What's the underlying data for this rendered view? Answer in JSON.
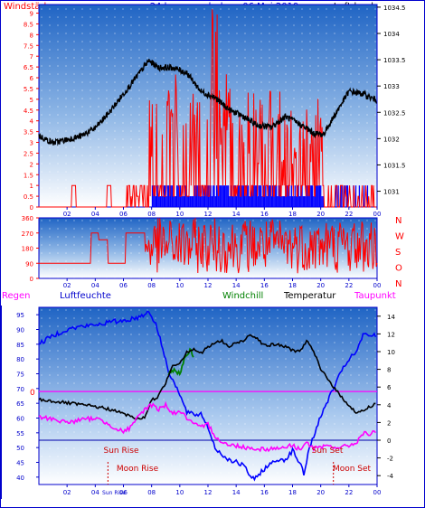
{
  "header": {
    "left_label": "Windstärke",
    "title": "24 hour graph day : 06 Mai 2019",
    "right_label": "Luftdruck"
  },
  "colors": {
    "wind": "#ff0000",
    "pressure": "#000000",
    "gust_bars": "#0000ff",
    "humidity": "#0000ff",
    "windchill": "#008000",
    "temperature": "#000000",
    "dewpoint": "#ff00ff",
    "zero_line": "#ff00ff",
    "sun_moon": "#cc0000",
    "bg_top": "#1a5cb8",
    "bg_bottom": "#ffffff"
  },
  "chart_data": [
    {
      "type": "line",
      "name": "wind-pressure",
      "x_ticks": [
        "02",
        "04",
        "06",
        "08",
        "10",
        "12",
        "14",
        "16",
        "18",
        "20",
        "22",
        "00"
      ],
      "left_axis": {
        "label": "Windstärke",
        "ticks": [
          0,
          0.5,
          1,
          1.5,
          2,
          2.5,
          3,
          3.5,
          4,
          4.5,
          5,
          5.5,
          6,
          6.5,
          7,
          7.5,
          8,
          8.5,
          9
        ],
        "ylim": [
          0,
          9.4
        ]
      },
      "right_axis": {
        "label": "Luftdruck",
        "ticks": [
          1031,
          1031.5,
          1032,
          1032.5,
          1033,
          1033.5,
          1034,
          1034.5
        ],
        "ylim": [
          1030.7,
          1034.55
        ]
      },
      "pressure_curve": [
        [
          0,
          1032.05
        ],
        [
          1,
          1031.92
        ],
        [
          2,
          1031.98
        ],
        [
          3,
          1032.05
        ],
        [
          4,
          1032.2
        ],
        [
          5,
          1032.5
        ],
        [
          6,
          1032.85
        ],
        [
          7,
          1033.2
        ],
        [
          7.8,
          1033.48
        ],
        [
          8.5,
          1033.35
        ],
        [
          9.5,
          1033.35
        ],
        [
          10.5,
          1033.25
        ],
        [
          11.5,
          1032.9
        ],
        [
          12.5,
          1032.78
        ],
        [
          13.5,
          1032.55
        ],
        [
          14.5,
          1032.42
        ],
        [
          15.5,
          1032.25
        ],
        [
          16.5,
          1032.22
        ],
        [
          17.5,
          1032.42
        ],
        [
          18.5,
          1032.28
        ],
        [
          19.5,
          1032.1
        ],
        [
          20.2,
          1032.08
        ],
        [
          21,
          1032.45
        ],
        [
          22,
          1032.9
        ],
        [
          23,
          1032.85
        ],
        [
          24,
          1032.72
        ]
      ]
    },
    {
      "type": "scatter",
      "name": "wind-direction",
      "x_ticks": [
        "02",
        "04",
        "06",
        "08",
        "10",
        "12",
        "14",
        "16",
        "18",
        "20",
        "22",
        "00"
      ],
      "y_ticks": [
        0,
        90,
        180,
        270,
        360
      ],
      "right_labels": [
        "N",
        "W",
        "S",
        "O",
        "N"
      ],
      "ylim": [
        0,
        360
      ]
    },
    {
      "type": "line",
      "name": "temperature-humidity",
      "x_ticks": [
        "02",
        "04",
        "06",
        "08",
        "10",
        "12",
        "14",
        "16",
        "18",
        "20",
        "22",
        "00"
      ],
      "legend": [
        "Regen",
        "Luftfeuchte",
        "Windchill",
        "Temperatur",
        "Taupunkt"
      ],
      "left_axis": {
        "ticks": [
          40,
          45,
          50,
          55,
          60,
          65,
          70,
          75,
          80,
          85,
          90,
          95
        ],
        "ylim": [
          37.5,
          97.5
        ]
      },
      "right_axis": {
        "ticks": [
          -4,
          -2,
          0,
          2,
          4,
          6,
          8,
          10,
          12,
          14
        ],
        "ylim": [
          -5,
          15
        ]
      },
      "zero_line_label": "0",
      "humidity": [
        [
          0,
          85
        ],
        [
          1,
          88
        ],
        [
          2,
          90
        ],
        [
          3,
          91
        ],
        [
          4,
          91.5
        ],
        [
          5,
          92.5
        ],
        [
          6,
          93
        ],
        [
          7,
          94
        ],
        [
          7.8,
          96
        ],
        [
          8.3,
          92
        ],
        [
          8.7,
          85
        ],
        [
          9.2,
          76
        ],
        [
          9.8,
          70
        ],
        [
          10.5,
          62
        ],
        [
          11,
          61
        ],
        [
          11.5,
          61.5
        ],
        [
          12,
          57
        ],
        [
          12.5,
          50
        ],
        [
          13,
          47.5
        ],
        [
          13.5,
          46
        ],
        [
          14,
          45
        ],
        [
          14.5,
          44
        ],
        [
          15,
          40.5
        ],
        [
          15.3,
          39
        ],
        [
          15.8,
          42
        ],
        [
          16.3,
          44
        ],
        [
          17,
          46
        ],
        [
          17.5,
          46
        ],
        [
          18,
          49
        ],
        [
          18.5,
          45
        ],
        [
          18.8,
          41
        ],
        [
          19.2,
          50
        ],
        [
          19.8,
          58
        ],
        [
          20.5,
          66
        ],
        [
          21,
          71
        ],
        [
          21.5,
          76
        ],
        [
          22,
          80
        ],
        [
          22.5,
          82
        ],
        [
          23,
          88
        ],
        [
          24,
          88
        ]
      ],
      "temperature": [
        [
          0,
          4.6
        ],
        [
          1,
          4.4
        ],
        [
          2,
          4.2
        ],
        [
          3,
          4.0
        ],
        [
          4,
          3.8
        ],
        [
          5,
          3.5
        ],
        [
          6,
          3.0
        ],
        [
          7,
          2.4
        ],
        [
          7.5,
          2.6
        ],
        [
          8,
          4.5
        ],
        [
          8.5,
          5.0
        ],
        [
          9,
          6.5
        ],
        [
          9.5,
          8.5
        ],
        [
          10,
          8.7
        ],
        [
          10.5,
          10.0
        ],
        [
          11,
          10.3
        ],
        [
          11.5,
          9.8
        ],
        [
          12,
          10.5
        ],
        [
          12.5,
          11.0
        ],
        [
          13,
          11.2
        ],
        [
          13.5,
          10.5
        ],
        [
          14,
          11.0
        ],
        [
          14.5,
          11.2
        ],
        [
          15,
          12.0
        ],
        [
          15.5,
          11.5
        ],
        [
          16,
          10.7
        ],
        [
          17,
          10.8
        ],
        [
          18,
          10.2
        ],
        [
          18.5,
          10.0
        ],
        [
          19,
          11.2
        ],
        [
          19.5,
          10.0
        ],
        [
          20,
          8.0
        ],
        [
          20.5,
          7.0
        ],
        [
          21,
          5.8
        ],
        [
          21.5,
          4.8
        ],
        [
          22,
          4.0
        ],
        [
          22.5,
          3.1
        ],
        [
          23,
          3.3
        ],
        [
          23.5,
          3.8
        ],
        [
          24,
          4.2
        ]
      ],
      "windchill": [
        [
          9.2,
          7.5
        ],
        [
          9.6,
          8.0
        ],
        [
          10,
          7.4
        ],
        [
          10.4,
          9.5
        ],
        [
          10.8,
          10.2
        ],
        [
          11,
          9.0
        ]
      ],
      "dewpoint": [
        [
          0,
          2.6
        ],
        [
          1,
          2.4
        ],
        [
          2,
          2.0
        ],
        [
          3,
          2.3
        ],
        [
          4,
          2.5
        ],
        [
          5,
          1.8
        ],
        [
          5.6,
          1.2
        ],
        [
          6,
          1.0
        ],
        [
          6.5,
          1.4
        ],
        [
          7,
          2.5
        ],
        [
          7.5,
          3.5
        ],
        [
          8,
          4.0
        ],
        [
          8.5,
          3.5
        ],
        [
          9,
          4.0
        ],
        [
          9.5,
          3.0
        ],
        [
          10,
          3.3
        ],
        [
          10.5,
          2.5
        ],
        [
          11,
          1.8
        ],
        [
          11.5,
          1.4
        ],
        [
          12,
          1.8
        ],
        [
          12.5,
          0.5
        ],
        [
          13,
          -0.2
        ],
        [
          13.5,
          -0.6
        ],
        [
          14,
          -0.6
        ],
        [
          15,
          -0.9
        ],
        [
          16,
          -1.0
        ],
        [
          17,
          -0.9
        ],
        [
          18,
          -0.6
        ],
        [
          18.5,
          -1.0
        ],
        [
          19,
          -0.3
        ],
        [
          19.5,
          -0.9
        ],
        [
          20,
          -0.9
        ],
        [
          20.5,
          -0.6
        ],
        [
          21,
          -0.8
        ],
        [
          21.5,
          -0.8
        ],
        [
          22,
          -0.6
        ],
        [
          22.5,
          -0.3
        ],
        [
          23,
          0.8
        ],
        [
          23.5,
          0.6
        ],
        [
          24,
          1.2
        ]
      ],
      "annotations": [
        {
          "text": "Sun Rise",
          "x": 5.4,
          "y_label": "low"
        },
        {
          "text": "Moon Rise",
          "x": 6.0,
          "y_label": "lower"
        },
        {
          "text": "Sun Set",
          "x": 20.5,
          "y_label": "low"
        },
        {
          "text": "Moon Set",
          "x": 21.3,
          "y_label": "lower"
        }
      ],
      "sunrise_tick": "Sun Rise",
      "sunrise_x": 5.2,
      "moonrise_x": 4.9,
      "moonset_x": 20.9
    }
  ],
  "panel2_right_labels": [
    "N",
    "W",
    "S",
    "O",
    "N"
  ],
  "panel3_header": {
    "regen": "Regen",
    "luftfeuchte": "Luftfeuchte",
    "windchill": "Windchill",
    "temperatur": "Temperatur",
    "taupunkt": "Taupunkt"
  },
  "annotations": {
    "sun_rise": "Sun Rise",
    "moon_rise": "Moon Rise",
    "sun_set": "Sun Set",
    "moon_set": "Moon Set",
    "sun_rise_tick": "Sun Rise"
  },
  "zero_label": "0"
}
